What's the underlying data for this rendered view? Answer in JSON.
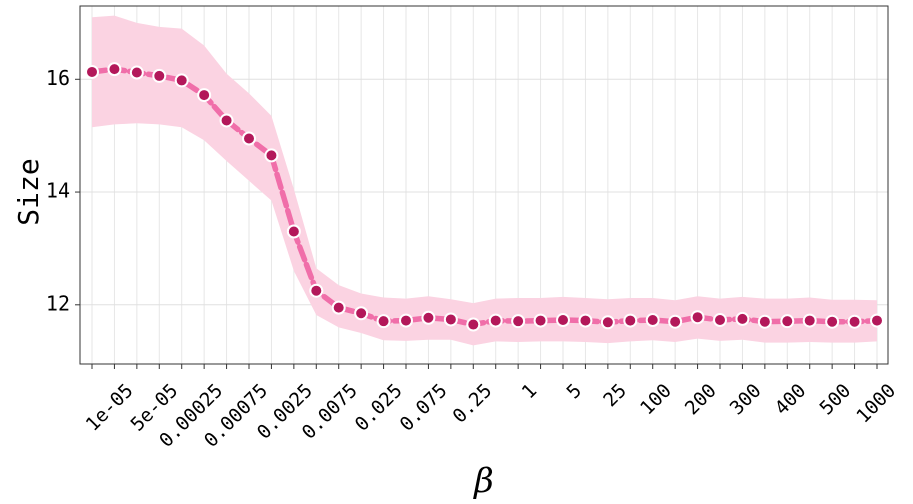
{
  "chart_data": {
    "type": "line",
    "title": "",
    "xlabel": "β",
    "ylabel": "Size",
    "ylim": [
      10.95,
      17.3
    ],
    "y_ticks": [
      12,
      14,
      16
    ],
    "grid": true,
    "legend": "none",
    "colors": {
      "line": "#f06ea9",
      "band": "#fbd3e2",
      "marker": "#b3185a",
      "marker_edge": "#ffffff"
    },
    "x_positions": [
      "",
      "1e-05",
      "",
      "5e-05",
      "",
      "0.00025",
      "",
      "0.00075",
      "",
      "0.0025",
      "",
      "0.0075",
      "",
      "0.025",
      "",
      "0.075",
      "",
      "0.25",
      "",
      "1",
      "",
      "5",
      "",
      "25",
      "",
      "100",
      "",
      "200",
      "",
      "300",
      "",
      "400",
      "",
      "500",
      "",
      "1000"
    ],
    "series": [
      {
        "values": [
          16.13,
          16.18,
          16.12,
          16.06,
          15.98,
          15.72,
          15.27,
          14.95,
          14.65,
          13.3,
          12.25,
          11.95,
          11.85,
          11.71,
          11.72,
          11.77,
          11.74,
          11.65,
          11.72,
          11.71,
          11.72,
          11.73,
          11.72,
          11.69,
          11.72,
          11.73,
          11.7,
          11.78,
          11.73,
          11.75,
          11.7,
          11.71,
          11.72,
          11.7,
          11.7,
          11.72
        ],
        "lower": [
          15.15,
          15.2,
          15.22,
          15.2,
          15.15,
          14.92,
          14.55,
          14.2,
          13.85,
          12.6,
          11.82,
          11.6,
          11.5,
          11.37,
          11.36,
          11.38,
          11.38,
          11.28,
          11.35,
          11.34,
          11.35,
          11.35,
          11.34,
          11.32,
          11.35,
          11.37,
          11.34,
          11.4,
          11.36,
          11.38,
          11.33,
          11.33,
          11.34,
          11.33,
          11.33,
          11.35
        ],
        "upper": [
          17.1,
          17.13,
          17.0,
          16.93,
          16.9,
          16.6,
          16.1,
          15.75,
          15.35,
          14.05,
          12.65,
          12.35,
          12.2,
          12.13,
          12.11,
          12.15,
          12.1,
          12.03,
          12.11,
          12.12,
          12.12,
          12.14,
          12.12,
          12.1,
          12.12,
          12.12,
          12.08,
          12.15,
          12.11,
          12.14,
          12.11,
          12.11,
          12.13,
          12.09,
          12.09,
          12.08
        ]
      }
    ]
  }
}
